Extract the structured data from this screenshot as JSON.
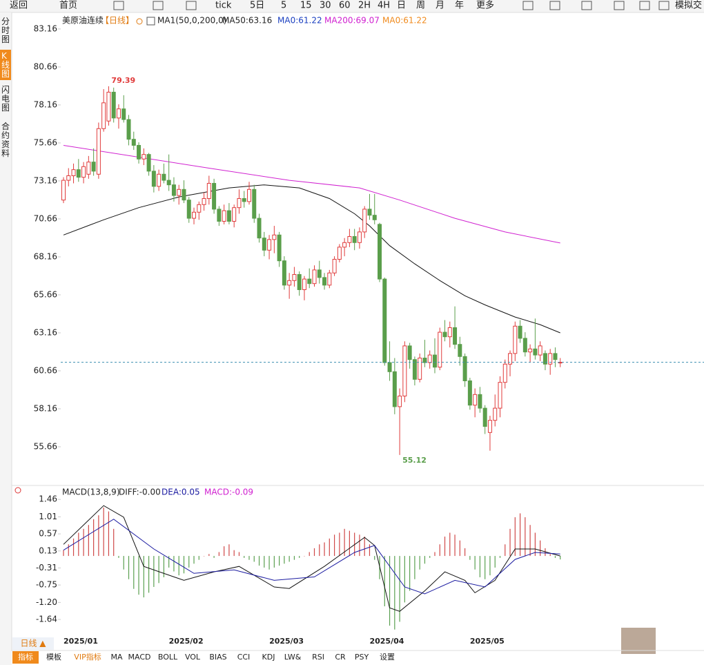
{
  "toolbar": [
    "返回",
    "首页",
    "tick",
    "5日",
    "5",
    "15",
    "30",
    "60",
    "2H",
    "4H",
    "日",
    "周",
    "月",
    "年",
    "更多",
    "模拟交"
  ],
  "sidebar": [
    "分时图",
    "K线图",
    "闪电图",
    "合约资料"
  ],
  "bottom_tabs": [
    "指标",
    "模板",
    "VIP指标",
    "MA",
    "MACD",
    "BOLL",
    "VOL",
    "BIAS",
    "CCI",
    "KDJ",
    "LW&",
    "RSI",
    "CR",
    "PSY",
    "设置"
  ],
  "period_button": "日线 ▲",
  "chart_data": [
    {
      "type": "candlestick",
      "title": "美原油连续",
      "period": "【日线】",
      "legend": [
        {
          "label": "MA1(50,0,200,0)",
          "color": "#222222"
        },
        {
          "label": "MA50:63.16",
          "color": "#222222"
        },
        {
          "label": "MA0:61.22",
          "color": "#1a3fc0"
        },
        {
          "label": "MA200:69.07",
          "color": "#d020d0"
        },
        {
          "label": "MA0:61.22",
          "color": "#f08a1c"
        }
      ],
      "annotations": [
        "79.39",
        "55.12"
      ],
      "up_color": "#e03a3a",
      "down_color": "#5a9e4b",
      "categories": [
        "2025/01",
        null,
        null,
        null,
        null,
        null,
        null,
        null,
        null,
        null,
        null,
        null,
        null,
        null,
        null,
        null,
        null,
        null,
        null,
        null,
        null,
        "2025/02",
        null,
        null,
        null,
        null,
        null,
        null,
        null,
        null,
        null,
        null,
        null,
        null,
        null,
        null,
        null,
        null,
        null,
        null,
        null,
        "2025/03",
        null,
        null,
        null,
        null,
        null,
        null,
        null,
        null,
        null,
        null,
        null,
        null,
        null,
        null,
        null,
        null,
        null,
        null,
        null,
        "2025/04",
        null,
        null,
        null,
        null,
        null,
        null,
        null,
        null,
        null,
        null,
        null,
        null,
        null,
        null,
        null,
        null,
        null,
        null,
        null,
        "2025/05",
        null,
        null,
        null,
        null,
        null,
        null,
        null,
        null,
        null,
        null,
        null,
        null,
        null,
        null,
        null,
        null,
        null,
        null
      ],
      "open": [
        71.9,
        73.2,
        73.5,
        73.9,
        73.4,
        73.6,
        74.4,
        73.6,
        76.6,
        77.1,
        79.0,
        77.3,
        77.9,
        77.2,
        75.9,
        75.5,
        74.6,
        74.9,
        73.8,
        72.8,
        73.6,
        73.2,
        72.9,
        72.2,
        72.6,
        71.9,
        70.7,
        71.1,
        71.6,
        72.0,
        73.0,
        71.3,
        70.5,
        71.2,
        70.5,
        71.4,
        72.0,
        71.8,
        72.6,
        70.7,
        69.4,
        68.6,
        69.3,
        69.6,
        67.9,
        66.3,
        66.6,
        67.0,
        66.0,
        66.7,
        66.4,
        67.3,
        66.8,
        66.3,
        67.1,
        68.0,
        68.8,
        69.1,
        69.5,
        69.1,
        69.8,
        71.3,
        70.9,
        70.3,
        66.7,
        61.2,
        60.6,
        58.3,
        59.0,
        62.3,
        61.4,
        60.1,
        61.5,
        61.2,
        61.7,
        60.9,
        63.2,
        62.9,
        63.5,
        62.4,
        61.6,
        60.0,
        58.4,
        59.1,
        58.2,
        56.6,
        57.4,
        58.2,
        59.9,
        61.1,
        61.8,
        63.6,
        62.8,
        61.9,
        62.1,
        61.7,
        61.8,
        61.1,
        61.8,
        61.2
      ],
      "high": [
        73.4,
        74.0,
        74.3,
        74.6,
        74.4,
        74.8,
        75.3,
        77.0,
        79.2,
        79.39,
        79.3,
        78.2,
        78.8,
        77.5,
        76.4,
        75.7,
        75.3,
        75.0,
        74.2,
        73.9,
        74.3,
        74.9,
        73.4,
        72.9,
        73.2,
        72.1,
        71.4,
        71.8,
        72.4,
        73.5,
        73.3,
        71.5,
        71.6,
        71.7,
        71.6,
        72.6,
        72.5,
        73.1,
        72.9,
        71.0,
        69.8,
        69.6,
        70.2,
        69.8,
        68.2,
        67.1,
        67.5,
        67.2,
        66.9,
        67.4,
        67.6,
        67.9,
        67.1,
        67.3,
        68.2,
        69.0,
        69.4,
        70.0,
        70.0,
        70.1,
        71.5,
        72.3,
        72.3,
        70.4,
        66.8,
        62.6,
        61.5,
        59.5,
        62.6,
        62.5,
        61.6,
        61.8,
        62.7,
        62.0,
        62.8,
        63.5,
        64.0,
        63.9,
        64.9,
        62.9,
        61.8,
        60.2,
        59.5,
        59.6,
        58.4,
        57.7,
        59.1,
        60.3,
        61.4,
        62.0,
        63.9,
        64.0,
        63.2,
        62.4,
        64.1,
        62.6,
        62.0,
        62.1,
        62.2,
        61.5
      ],
      "low": [
        71.7,
        72.8,
        73.0,
        73.1,
        73.0,
        73.3,
        73.5,
        73.3,
        76.4,
        76.8,
        77.0,
        76.6,
        77.0,
        75.5,
        75.2,
        74.3,
        74.2,
        73.5,
        72.4,
        72.5,
        73.0,
        72.5,
        71.8,
        71.6,
        71.7,
        70.4,
        70.3,
        70.6,
        71.2,
        71.6,
        71.0,
        70.2,
        70.3,
        70.3,
        70.1,
        71.0,
        71.4,
        71.6,
        70.4,
        69.1,
        68.2,
        68.0,
        68.4,
        67.5,
        66.0,
        65.4,
        66.2,
        65.6,
        65.3,
        66.1,
        66.2,
        66.4,
        66.0,
        66.1,
        66.9,
        67.8,
        68.2,
        68.8,
        68.6,
        68.7,
        69.4,
        70.6,
        70.3,
        66.5,
        61.0,
        60.0,
        57.8,
        55.12,
        58.6,
        60.8,
        59.7,
        59.9,
        60.9,
        60.8,
        60.5,
        60.7,
        62.6,
        62.2,
        62.1,
        61.0,
        59.6,
        58.1,
        57.6,
        57.9,
        56.5,
        55.4,
        57.0,
        57.6,
        59.5,
        60.3,
        61.3,
        62.5,
        61.6,
        61.2,
        61.4,
        61.3,
        60.7,
        60.4,
        60.9,
        60.9
      ],
      "close": [
        73.2,
        73.5,
        73.9,
        73.4,
        74.1,
        74.4,
        73.8,
        76.6,
        78.3,
        79.0,
        77.3,
        77.9,
        77.2,
        75.9,
        75.5,
        74.6,
        74.9,
        73.8,
        72.8,
        73.6,
        73.2,
        72.9,
        72.2,
        72.6,
        71.9,
        70.7,
        71.1,
        71.6,
        72.0,
        73.0,
        71.3,
        70.5,
        71.2,
        70.5,
        71.4,
        72.0,
        71.8,
        72.6,
        70.7,
        69.4,
        68.6,
        69.3,
        69.6,
        67.9,
        66.3,
        66.6,
        67.0,
        66.0,
        66.7,
        66.4,
        67.3,
        66.8,
        66.3,
        67.1,
        68.0,
        68.8,
        69.1,
        69.5,
        69.1,
        69.8,
        71.3,
        70.9,
        70.6,
        66.7,
        61.2,
        60.6,
        58.3,
        59.0,
        62.3,
        61.4,
        60.1,
        61.5,
        61.2,
        61.7,
        60.9,
        63.2,
        62.9,
        63.5,
        62.4,
        61.6,
        60.0,
        58.4,
        59.1,
        58.2,
        57.0,
        57.4,
        58.2,
        59.9,
        61.1,
        61.8,
        63.6,
        62.8,
        61.9,
        62.1,
        61.7,
        62.3,
        61.1,
        61.8,
        61.4,
        61.22
      ],
      "lines": [
        {
          "name": "MA50",
          "color": "#111111",
          "x": [
            0,
            8,
            15,
            23,
            33,
            40,
            47,
            53,
            58,
            61,
            65,
            70,
            75,
            80,
            84,
            90,
            95,
            99
          ],
          "values": [
            69.6,
            70.6,
            71.4,
            72.1,
            72.7,
            72.9,
            72.7,
            72.0,
            71.0,
            70.2,
            68.9,
            67.7,
            66.6,
            65.6,
            65.0,
            64.2,
            63.7,
            63.16
          ]
        },
        {
          "name": "MA200",
          "color": "#d020d0",
          "x": [
            0,
            29,
            45,
            59,
            67,
            78,
            88,
            99
          ],
          "values": [
            75.5,
            74.0,
            73.2,
            72.7,
            71.9,
            70.7,
            69.8,
            69.07
          ]
        }
      ],
      "ylim": [
        53.25,
        83.93
      ],
      "yticks": [
        83.16,
        80.66,
        78.16,
        75.66,
        73.16,
        70.66,
        68.16,
        65.66,
        63.16,
        60.66,
        58.16,
        55.66
      ]
    },
    {
      "type": "macd",
      "title": "MACD(13,8,9)",
      "legend": [
        {
          "label": "DIFF:-0.00",
          "color": "#222222"
        },
        {
          "label": "DEA:0.05",
          "color": "#1a1aa0"
        },
        {
          "label": "MACD:-0.09",
          "color": "#d020d0"
        }
      ],
      "up_color": "#d04848",
      "down_color": "#5aa050",
      "histogram": [
        0.15,
        0.3,
        0.45,
        0.6,
        0.7,
        0.8,
        0.95,
        1.05,
        1.25,
        1.15,
        0.7,
        -0.05,
        -0.35,
        -0.6,
        -0.85,
        -1.0,
        -1.07,
        -0.95,
        -0.8,
        -0.7,
        -0.55,
        -0.3,
        -0.4,
        -0.5,
        -0.45,
        -0.3,
        -0.2,
        -0.1,
        0.0,
        0.05,
        -0.05,
        0.1,
        0.25,
        0.3,
        0.15,
        0.1,
        -0.05,
        -0.1,
        -0.15,
        -0.25,
        -0.3,
        -0.35,
        -0.3,
        -0.25,
        -0.2,
        -0.15,
        -0.1,
        -0.05,
        0.0,
        0.1,
        0.2,
        0.3,
        0.35,
        0.45,
        0.55,
        0.6,
        0.7,
        0.65,
        0.6,
        0.55,
        0.5,
        0.3,
        -0.1,
        -0.6,
        -1.3,
        -1.8,
        -1.9,
        -1.7,
        -1.2,
        -0.9,
        -0.6,
        -0.35,
        -0.2,
        -0.05,
        0.1,
        0.3,
        0.5,
        0.6,
        0.55,
        0.4,
        0.2,
        -0.1,
        -0.35,
        -0.55,
        -0.6,
        -0.5,
        -0.3,
        -0.05,
        0.3,
        0.7,
        1.0,
        1.1,
        1.0,
        0.8,
        0.6,
        0.4,
        0.2,
        0.05,
        -0.05,
        -0.09
      ],
      "series": [
        {
          "name": "DIFF",
          "color": "#111111",
          "x": [
            0,
            8,
            12,
            16,
            24,
            30,
            35,
            42,
            45,
            52,
            60,
            62,
            65,
            67,
            72,
            76,
            80,
            82,
            86,
            90,
            94,
            99
          ],
          "values": [
            0.3,
            1.3,
            1.0,
            -0.27,
            -0.63,
            -0.41,
            -0.27,
            -0.8,
            -0.84,
            -0.27,
            0.48,
            0.27,
            -1.34,
            -1.43,
            -0.9,
            -0.41,
            -0.63,
            -0.95,
            -0.63,
            0.18,
            0.18,
            0.0
          ]
        },
        {
          "name": "DEA",
          "color": "#1a1aa0",
          "x": [
            0,
            10,
            18,
            26,
            34,
            42,
            50,
            58,
            62,
            68,
            72,
            78,
            84,
            90,
            94,
            99
          ],
          "values": [
            0.15,
            0.95,
            0.18,
            -0.45,
            -0.36,
            -0.63,
            -0.54,
            0.09,
            0.27,
            -0.8,
            -0.98,
            -0.63,
            -0.8,
            -0.09,
            0.09,
            0.05
          ]
        }
      ],
      "ylim": [
        -1.96,
        1.66
      ],
      "yticks": [
        1.46,
        1.01,
        0.57,
        0.13,
        -0.31,
        -0.75,
        {
          "value": -1.2,
          "label": "-1.20"
        },
        -1.64
      ]
    }
  ]
}
